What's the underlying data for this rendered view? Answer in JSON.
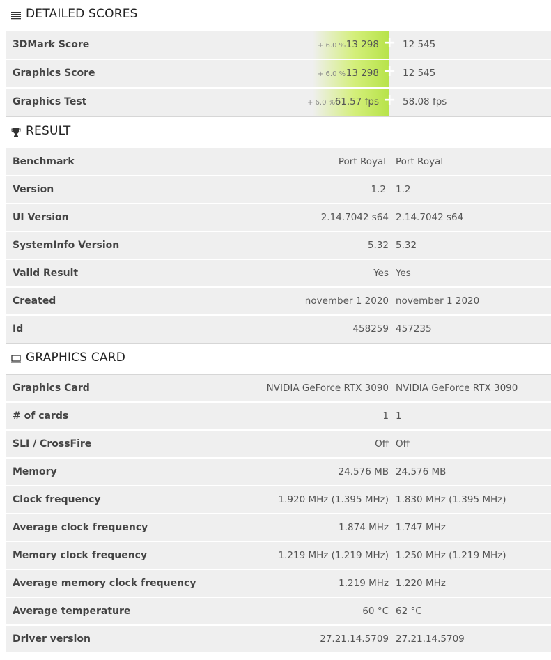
{
  "detailed": {
    "title": "DETAILED SCORES",
    "rows": [
      {
        "label": "3DMark Score",
        "pct": "+ 6.0 %",
        "a": "13 298",
        "b": "12 545"
      },
      {
        "label": "Graphics Score",
        "pct": "+ 6.0 %",
        "a": "13 298",
        "b": "12 545"
      },
      {
        "label": "Graphics Test",
        "pct": "+ 6.0 %",
        "a": "61.57 fps",
        "b": "58.08 fps"
      }
    ]
  },
  "result": {
    "title": "RESULT",
    "rows": [
      {
        "label": "Benchmark",
        "a": "Port Royal",
        "b": "Port Royal"
      },
      {
        "label": "Version",
        "a": "1.2",
        "b": "1.2"
      },
      {
        "label": "UI Version",
        "a": "2.14.7042 s64",
        "b": "2.14.7042 s64"
      },
      {
        "label": "SystemInfo Version",
        "a": "5.32",
        "b": "5.32"
      },
      {
        "label": "Valid Result",
        "a": "Yes",
        "b": "Yes"
      },
      {
        "label": "Created",
        "a": "november 1 2020",
        "b": "november 1 2020"
      },
      {
        "label": "Id",
        "a": "458259",
        "b": "457235"
      }
    ]
  },
  "graphics": {
    "title": "GRAPHICS CARD",
    "rows": [
      {
        "label": "Graphics Card",
        "a": "NVIDIA GeForce RTX 3090",
        "b": "NVIDIA GeForce RTX 3090"
      },
      {
        "label": "# of cards",
        "a": "1",
        "b": "1"
      },
      {
        "label": "SLI / CrossFire",
        "a": "Off",
        "b": "Off"
      },
      {
        "label": "Memory",
        "a": "24.576 MB",
        "b": "24.576 MB"
      },
      {
        "label": "Clock frequency",
        "a": "1.920 MHz (1.395 MHz)",
        "b": "1.830 MHz (1.395 MHz)"
      },
      {
        "label": "Average clock frequency",
        "a": "1.874 MHz",
        "b": "1.747 MHz"
      },
      {
        "label": "Memory clock frequency",
        "a": "1.219 MHz (1.219 MHz)",
        "b": "1.250 MHz (1.219 MHz)"
      },
      {
        "label": "Average memory clock frequency",
        "a": "1.219 MHz",
        "b": "1.220 MHz"
      },
      {
        "label": "Average temperature",
        "a": "60 °C",
        "b": "62 °C"
      },
      {
        "label": "Driver version",
        "a": "27.21.14.5709",
        "b": "27.21.14.5709"
      }
    ]
  },
  "icons": {
    "detailed": "list-icon",
    "result": "trophy-icon",
    "graphics": "monitor-icon"
  },
  "colors": {
    "highlight": "#b7e34a",
    "yes": "#3a8fb7",
    "row_bg": "#efefef"
  }
}
